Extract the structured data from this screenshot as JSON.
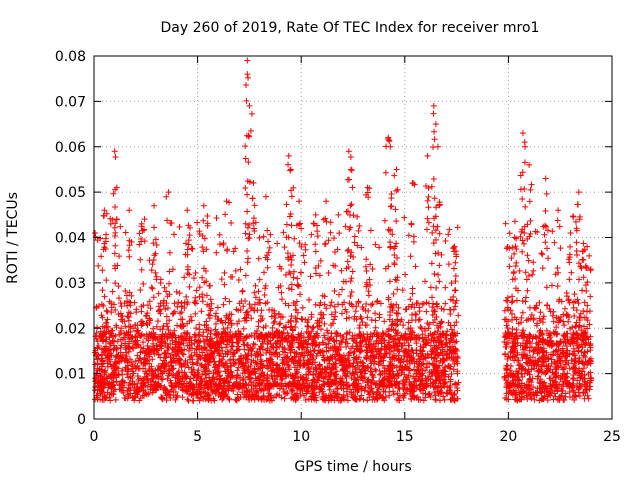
{
  "chart_data": {
    "type": "scatter",
    "title": "Day 260 of 2019, Rate Of TEC Index for receiver mro1",
    "xlabel": "GPS time / hours",
    "ylabel": "ROTI / TECUs",
    "xlim": [
      0,
      25
    ],
    "ylim": [
      0,
      0.08
    ],
    "xticks": [
      0,
      5,
      10,
      15,
      20,
      25
    ],
    "xtick_labels": [
      "0",
      "5",
      "10",
      "15",
      "20",
      "25"
    ],
    "yticks": [
      0,
      0.01,
      0.02,
      0.03,
      0.04,
      0.05,
      0.06,
      0.07,
      0.08
    ],
    "ytick_labels": [
      "0",
      "0.01",
      "0.02",
      "0.03",
      "0.04",
      "0.05",
      "0.06",
      "0.07",
      "0.08"
    ],
    "grid": true,
    "marker": "+",
    "color": "#ff0000",
    "series": [
      {
        "name": "ROTI",
        "segments": [
          {
            "x_start": 0.0,
            "x_end": 17.6,
            "typical_range": [
              0.004,
              0.035
            ]
          },
          {
            "x_start": 19.8,
            "x_end": 24.0,
            "typical_range": [
              0.004,
              0.035
            ]
          }
        ],
        "peaks": [
          {
            "x": 0.05,
            "y": 0.041
          },
          {
            "x": 0.5,
            "y": 0.046
          },
          {
            "x": 1.0,
            "y": 0.059
          },
          {
            "x": 1.1,
            "y": 0.051
          },
          {
            "x": 1.7,
            "y": 0.046
          },
          {
            "x": 2.3,
            "y": 0.043
          },
          {
            "x": 2.9,
            "y": 0.047
          },
          {
            "x": 3.6,
            "y": 0.05
          },
          {
            "x": 4.5,
            "y": 0.046
          },
          {
            "x": 5.3,
            "y": 0.047
          },
          {
            "x": 6.4,
            "y": 0.048
          },
          {
            "x": 7.4,
            "y": 0.079
          },
          {
            "x": 7.4,
            "y": 0.076
          },
          {
            "x": 7.5,
            "y": 0.069
          },
          {
            "x": 7.7,
            "y": 0.052
          },
          {
            "x": 8.3,
            "y": 0.049
          },
          {
            "x": 9.4,
            "y": 0.058
          },
          {
            "x": 9.5,
            "y": 0.055
          },
          {
            "x": 9.9,
            "y": 0.048
          },
          {
            "x": 10.7,
            "y": 0.045
          },
          {
            "x": 11.2,
            "y": 0.048
          },
          {
            "x": 12.3,
            "y": 0.059
          },
          {
            "x": 12.4,
            "y": 0.055
          },
          {
            "x": 13.2,
            "y": 0.051
          },
          {
            "x": 14.2,
            "y": 0.062
          },
          {
            "x": 14.3,
            "y": 0.06
          },
          {
            "x": 14.6,
            "y": 0.055
          },
          {
            "x": 15.4,
            "y": 0.052
          },
          {
            "x": 16.1,
            "y": 0.058
          },
          {
            "x": 16.4,
            "y": 0.069
          },
          {
            "x": 16.5,
            "y": 0.065
          },
          {
            "x": 16.6,
            "y": 0.06
          },
          {
            "x": 17.4,
            "y": 0.038
          },
          {
            "x": 20.3,
            "y": 0.04
          },
          {
            "x": 20.7,
            "y": 0.063
          },
          {
            "x": 20.8,
            "y": 0.06
          },
          {
            "x": 21.0,
            "y": 0.056
          },
          {
            "x": 21.8,
            "y": 0.053
          },
          {
            "x": 22.4,
            "y": 0.046
          },
          {
            "x": 23.0,
            "y": 0.041
          },
          {
            "x": 23.4,
            "y": 0.05
          },
          {
            "x": 23.8,
            "y": 0.038
          }
        ]
      }
    ]
  }
}
